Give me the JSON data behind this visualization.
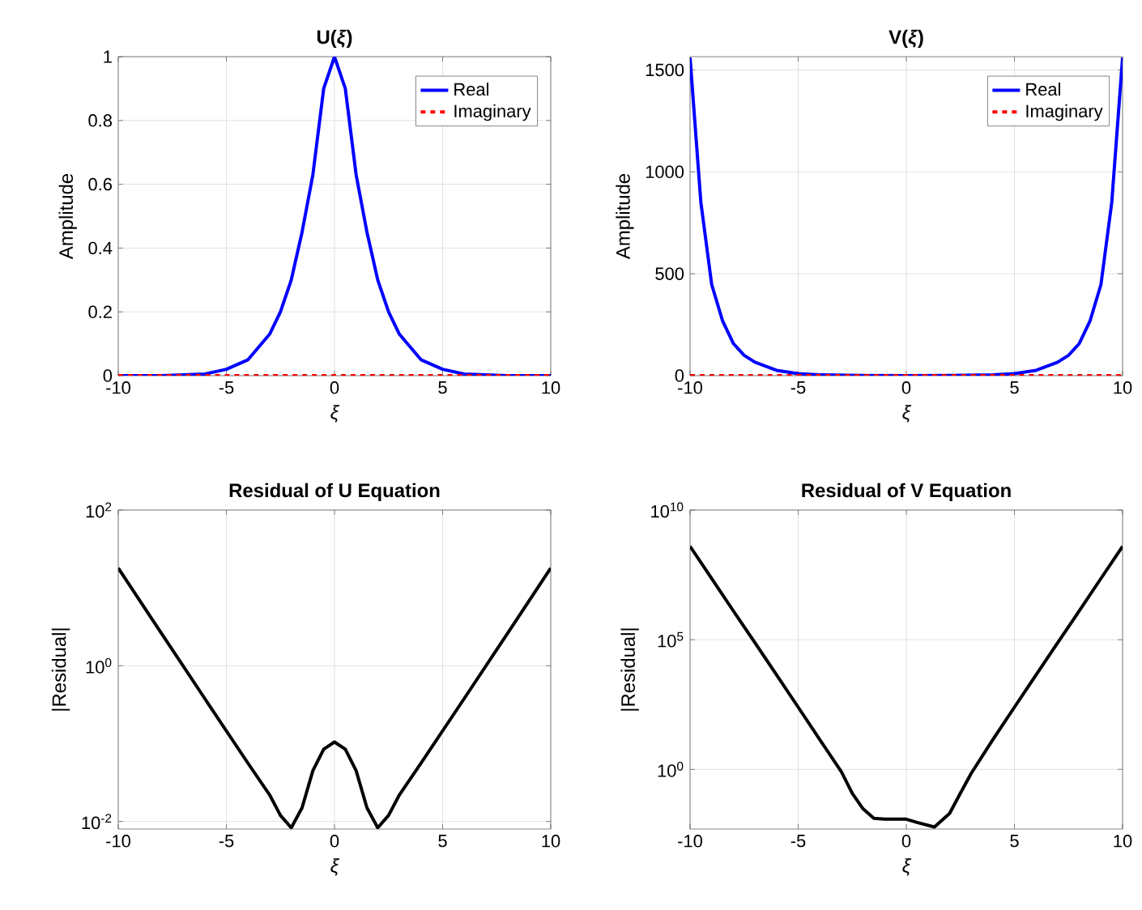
{
  "chart_data": [
    {
      "type": "line",
      "title": "U(*ξ*)",
      "xlabel": "ξ",
      "ylabel": "Amplitude",
      "x": [
        -10,
        -8,
        -6,
        -5,
        -4,
        -3,
        -2.5,
        -2,
        -1.5,
        -1,
        -0.5,
        0,
        0.5,
        1,
        1.5,
        2,
        2.5,
        3,
        4,
        5,
        6,
        8,
        10
      ],
      "series": [
        {
          "name": "Real",
          "color": "#0000ff",
          "line_style": "solid",
          "values": [
            0,
            0,
            0.005,
            0.02,
            0.05,
            0.13,
            0.2,
            0.3,
            0.45,
            0.63,
            0.9,
            1,
            0.9,
            0.63,
            0.45,
            0.3,
            0.2,
            0.13,
            0.05,
            0.02,
            0.005,
            0,
            0
          ]
        },
        {
          "name": "Imaginary",
          "color": "#ff0000",
          "line_style": "dashed",
          "values": [
            0,
            0,
            0,
            0,
            0,
            0,
            0,
            0,
            0,
            0,
            0,
            0,
            0,
            0,
            0,
            0,
            0,
            0,
            0,
            0,
            0,
            0,
            0
          ]
        }
      ],
      "xlim": [
        -10,
        10
      ],
      "xticks": [
        -10,
        -5,
        0,
        5,
        10
      ],
      "ylim": [
        0,
        1
      ],
      "yticks": [
        0,
        0.2,
        0.4,
        0.6,
        0.8,
        1
      ],
      "grid": true,
      "legend": "top right"
    },
    {
      "type": "line",
      "title": "V(*ξ*)",
      "xlabel": "ξ",
      "ylabel": "Amplitude",
      "x": [
        -10,
        -9.5,
        -9,
        -8.5,
        -8,
        -7.5,
        -7,
        -6,
        -5,
        -4,
        -2,
        0,
        2,
        4,
        5,
        6,
        7,
        7.5,
        8,
        8.5,
        9,
        9.5,
        10
      ],
      "series": [
        {
          "name": "Real",
          "color": "#0000ff",
          "line_style": "solid",
          "values": [
            1560,
            850,
            447,
            270,
            158,
            100,
            66,
            26,
            10,
            4,
            1,
            0.5,
            1,
            4,
            10,
            26,
            66,
            100,
            158,
            270,
            447,
            850,
            1560
          ]
        },
        {
          "name": "Imaginary",
          "color": "#ff0000",
          "line_style": "dashed",
          "values": [
            0,
            0,
            0,
            0,
            0,
            0,
            0,
            0,
            0,
            0,
            0,
            0,
            0,
            0,
            0,
            0,
            0,
            0,
            0,
            0,
            0,
            0,
            0
          ]
        }
      ],
      "xlim": [
        -10,
        10
      ],
      "xticks": [
        -10,
        -5,
        0,
        5,
        10
      ],
      "ylim": [
        0,
        1565
      ],
      "yticks": [
        0,
        500,
        1000,
        1500
      ],
      "grid": true,
      "legend": "top right"
    },
    {
      "type": "line",
      "title": "Residual of U Equation",
      "xlabel": "ξ",
      "ylabel": "|Residual|",
      "x": [
        -10,
        -8,
        -6,
        -4,
        -3,
        -2.5,
        -2,
        -1.5,
        -1,
        -0.5,
        0,
        0.5,
        1,
        1.5,
        2,
        2.5,
        3,
        4,
        6,
        8,
        10
      ],
      "series": [
        {
          "color": "#000000",
          "line_style": "solid",
          "values": [
            18,
            2.6,
            0.38,
            0.056,
            0.022,
            0.012,
            0.0083,
            0.015,
            0.045,
            0.085,
            0.105,
            0.085,
            0.045,
            0.015,
            0.0083,
            0.012,
            0.022,
            0.056,
            0.38,
            2.6,
            18
          ]
        }
      ],
      "xlim": [
        -10,
        10
      ],
      "xticks": [
        -10,
        -5,
        0,
        5,
        10
      ],
      "ylim": [
        0.008,
        100
      ],
      "yticks": [
        {
          "value": 0.01,
          "label": "10$^{-2}$"
        },
        {
          "value": 1,
          "label": "10$^{0}$"
        },
        {
          "value": 100,
          "label": "10$^{2}$"
        }
      ],
      "log": "y",
      "grid": true
    },
    {
      "type": "line",
      "title": "Residual of V Equation",
      "xlabel": "ξ",
      "ylabel": "|Residual|",
      "x": [
        -10,
        -9,
        -8,
        -7,
        -6,
        -5,
        -4,
        -3,
        -2.5,
        -2,
        -1.5,
        -1,
        0,
        0.5,
        1.3,
        2,
        2.5,
        3,
        4,
        5,
        6,
        7,
        8,
        9,
        10
      ],
      "series": [
        {
          "color": "#000000",
          "line_style": "solid",
          "values": [
            400000000,
            23000000,
            1300000,
            76000,
            4400,
            250,
            14,
            0.8,
            0.12,
            0.03,
            0.013,
            0.012,
            0.012,
            0.009,
            0.006,
            0.02,
            0.12,
            0.7,
            14,
            250,
            4400,
            76000,
            1300000,
            23000000,
            400000000
          ]
        }
      ],
      "xlim": [
        -10,
        10
      ],
      "xticks": [
        -10,
        -5,
        0,
        5,
        10
      ],
      "ylim": [
        0.005,
        10000000000
      ],
      "yticks": [
        {
          "value": 1,
          "label": "10$^{0}$"
        },
        {
          "value": 100000,
          "label": "10$^{5}$"
        },
        {
          "value": 10000000000,
          "label": "10$^{10}$"
        }
      ],
      "log": "y",
      "grid": true
    }
  ]
}
